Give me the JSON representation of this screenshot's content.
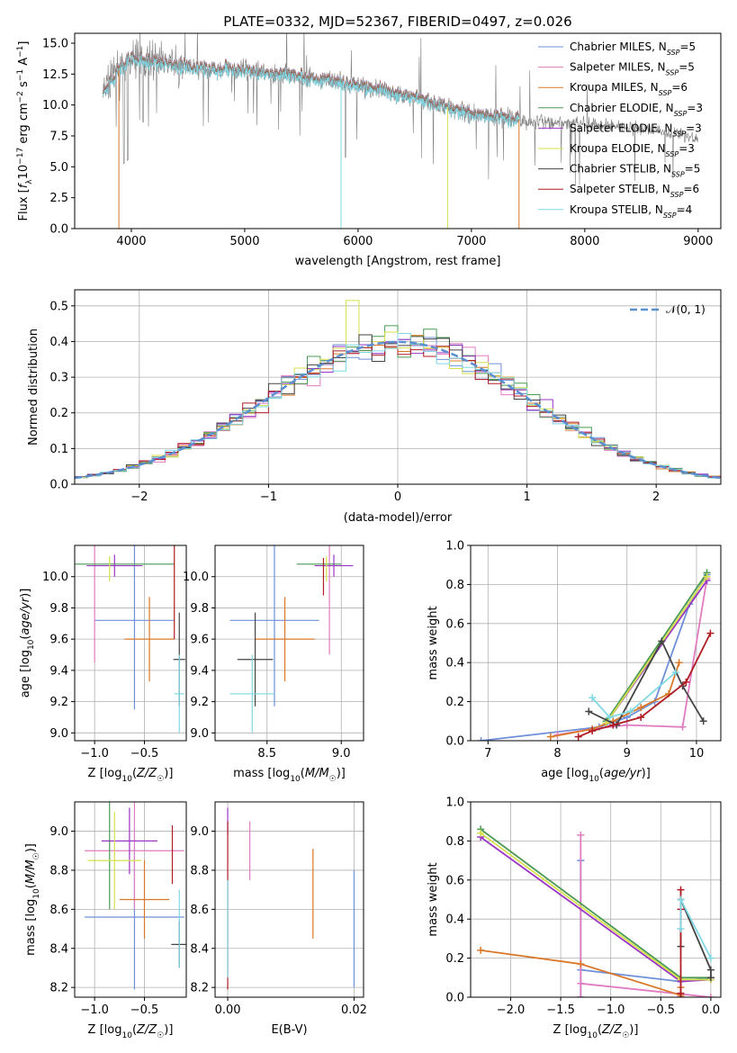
{
  "figure": {
    "title": "PLATE=0332, MJD=52367, FIBERID=0497, z=0.026"
  },
  "models": [
    {
      "lib": "MILES",
      "imf": "Chabrier",
      "label": "Chabrier MILES, N",
      "sub": "SSP",
      "suffix": "=5",
      "color": "#6f8fd8"
    },
    {
      "lib": "MILES",
      "imf": "Salpeter",
      "label": "Salpeter MILES, N",
      "sub": "SSP",
      "suffix": "=5",
      "color": "#e07cc0"
    },
    {
      "lib": "MILES",
      "imf": "Kroupa",
      "label": "Kroupa MILES, N",
      "sub": "SSP",
      "suffix": "=6",
      "color": "#d9782a"
    },
    {
      "lib": "ELODIE",
      "imf": "Chabrier",
      "label": "Chabrier ELODIE, N",
      "sub": "SSP",
      "suffix": "=3",
      "color": "#4a9a54"
    },
    {
      "lib": "ELODIE",
      "imf": "Salpeter",
      "label": "Salpeter ELODIE, N",
      "sub": "SSP",
      "suffix": "=3",
      "color": "#9a35c4"
    },
    {
      "lib": "ELODIE",
      "imf": "Kroupa",
      "label": "Kroupa ELODIE, N",
      "sub": "SSP",
      "suffix": "=3",
      "color": "#d6e04c"
    },
    {
      "lib": "STELIB",
      "imf": "Chabrier",
      "label": "Chabrier STELIB, N",
      "sub": "SSP",
      "suffix": "=5",
      "color": "#444444"
    },
    {
      "lib": "STELIB",
      "imf": "Salpeter",
      "label": "Salpeter STELIB, N",
      "sub": "SSP",
      "suffix": "=6",
      "color": "#b01c24"
    },
    {
      "lib": "STELIB",
      "imf": "Kroupa",
      "label": "Kroupa STELIB, N",
      "sub": "SSP",
      "suffix": "=4",
      "color": "#7fd8e4"
    }
  ],
  "chart_data": [
    {
      "id": "spectrum",
      "type": "line",
      "xlabel": "wavelength [Angstrom, rest frame]",
      "ylabel": "Flux [f_λ10^-17 erg cm^-2 s^-1 A^-1]",
      "xlim": [
        3500,
        9200
      ],
      "ylim": [
        0,
        15.8
      ],
      "xticks": [
        4000,
        5000,
        6000,
        7000,
        8000,
        9000
      ],
      "yticks": [
        0.0,
        2.5,
        5.0,
        7.5,
        10.0,
        12.5,
        15.0
      ],
      "data_color": "#808080",
      "x_range": [
        3750,
        9000
      ],
      "continuum": [
        [
          3750,
          11.0
        ],
        [
          3900,
          13.0
        ],
        [
          4000,
          13.8
        ],
        [
          4300,
          13.3
        ],
        [
          4600,
          12.9
        ],
        [
          5000,
          12.8
        ],
        [
          5500,
          12.3
        ],
        [
          6000,
          11.6
        ],
        [
          6500,
          10.6
        ],
        [
          7000,
          9.3
        ],
        [
          7500,
          8.7
        ],
        [
          8000,
          8.5
        ],
        [
          8500,
          8.1
        ],
        [
          9000,
          7.4
        ]
      ],
      "model_span": [
        3750,
        7420
      ]
    },
    {
      "id": "residuals",
      "type": "histogram",
      "xlabel": "(data-model)/error",
      "ylabel": "Normed distribution",
      "xlim": [
        -2.5,
        2.5
      ],
      "ylim": [
        0,
        0.545
      ],
      "xticks": [
        -2,
        -1,
        0,
        1,
        2
      ],
      "yticks": [
        0.0,
        0.1,
        0.2,
        0.3,
        0.4,
        0.5
      ],
      "bin_width": 0.1,
      "legend": "𝒩(0, 1)",
      "legend_color": "#5b8fd0",
      "highlight": {
        "Kroupa ELODIE": [
          -0.4,
          0.515
        ]
      }
    },
    {
      "id": "age-vs-Z",
      "type": "errorbar",
      "xlabel": "Z [log10(Z/Z☉)]",
      "ylabel": "age  [log10(age/yr)]",
      "xlim": [
        -1.2,
        -0.08
      ],
      "ylim": [
        8.95,
        10.2
      ],
      "xticks": [
        -1.0,
        -0.5
      ],
      "yticks": [
        9.0,
        9.2,
        9.4,
        9.6,
        9.8,
        10.0
      ],
      "points": [
        {
          "x": -0.6,
          "xerr": 0.4,
          "y": 9.72,
          "yerr": 0.57
        },
        {
          "x": -1.0,
          "xerr": 0.0,
          "y": 10.0,
          "yerr": 0.55
        },
        {
          "x": -0.45,
          "xerr": 0.25,
          "y": 9.6,
          "yerr": 0.27
        },
        {
          "x": -0.7,
          "xerr": 0.5,
          "y": 10.08,
          "yerr": 0.0
        },
        {
          "x": -0.8,
          "xerr": 0.28,
          "y": 10.07,
          "yerr": 0.07
        },
        {
          "x": -0.85,
          "xerr": 0.0,
          "y": 10.05,
          "yerr": 0.08
        },
        {
          "x": -0.15,
          "xerr": 0.06,
          "y": 9.47,
          "yerr": 0.3
        },
        {
          "x": -0.2,
          "xerr": 0.0,
          "y": 9.95,
          "yerr": 0.35
        },
        {
          "x": -0.15,
          "xerr": 0.05,
          "y": 9.25,
          "yerr": 0.25
        }
      ]
    },
    {
      "id": "age-vs-mass",
      "type": "errorbar",
      "xlabel": "mass [log10(M/M☉)]",
      "ylabel": "",
      "xlim": [
        8.15,
        9.15
      ],
      "ylim": [
        8.95,
        10.2
      ],
      "xticks": [
        8.5,
        9.0
      ],
      "yticks": [
        9.0,
        9.2,
        9.4,
        9.6,
        9.8,
        10.0
      ],
      "points": [
        {
          "x": 8.55,
          "xerr": 0.3,
          "y": 9.72,
          "yerr": 0.55
        },
        {
          "x": 8.92,
          "xerr": 0.0,
          "y": 10.0,
          "yerr": 0.5
        },
        {
          "x": 8.62,
          "xerr": 0.2,
          "y": 9.6,
          "yerr": 0.27
        },
        {
          "x": 8.85,
          "xerr": 0.15,
          "y": 10.08,
          "yerr": 0.0
        },
        {
          "x": 8.95,
          "xerr": 0.13,
          "y": 10.07,
          "yerr": 0.07
        },
        {
          "x": 8.9,
          "xerr": 0.0,
          "y": 10.05,
          "yerr": 0.08
        },
        {
          "x": 8.42,
          "xerr": 0.12,
          "y": 9.47,
          "yerr": 0.3
        },
        {
          "x": 8.88,
          "xerr": 0.0,
          "y": 10.0,
          "yerr": 0.12
        },
        {
          "x": 8.4,
          "xerr": 0.15,
          "y": 9.25,
          "yerr": 0.25
        }
      ]
    },
    {
      "id": "mass-weight-vs-age",
      "type": "line",
      "xlabel": "age  [log10(age/yr)]",
      "ylabel": "mass weight",
      "xlim": [
        6.75,
        10.35
      ],
      "ylim": [
        0,
        1.0
      ],
      "xticks": [
        7,
        8,
        9,
        10
      ],
      "yticks": [
        0.0,
        0.2,
        0.4,
        0.6,
        0.8,
        1.0
      ],
      "series": [
        {
          "x": [
            6.9,
            8.6,
            9.0,
            9.4,
            9.9,
            10.15
          ],
          "y": [
            0.0,
            0.07,
            0.12,
            0.2,
            0.7,
            0.85
          ]
        },
        {
          "x": [
            8.0,
            8.5,
            9.0,
            9.8,
            10.15
          ],
          "y": [
            0.03,
            0.06,
            0.08,
            0.07,
            0.83
          ]
        },
        {
          "x": [
            7.9,
            8.5,
            8.8,
            9.2,
            9.6,
            9.75
          ],
          "y": [
            0.02,
            0.06,
            0.1,
            0.17,
            0.24,
            0.4
          ]
        },
        {
          "x": [
            8.7,
            10.15
          ],
          "y": [
            0.1,
            0.86
          ]
        },
        {
          "x": [
            8.7,
            10.15
          ],
          "y": [
            0.09,
            0.82
          ]
        },
        {
          "x": [
            8.7,
            10.15
          ],
          "y": [
            0.09,
            0.84
          ]
        },
        {
          "x": [
            8.45,
            8.85,
            9.5,
            9.8,
            10.1
          ],
          "y": [
            0.15,
            0.08,
            0.51,
            0.28,
            0.1
          ]
        },
        {
          "x": [
            8.3,
            8.5,
            8.8,
            9.2,
            9.85,
            10.2
          ],
          "y": [
            0.02,
            0.05,
            0.08,
            0.12,
            0.3,
            0.55
          ]
        },
        {
          "x": [
            8.5,
            8.75,
            9.05,
            9.7
          ],
          "y": [
            0.22,
            0.12,
            0.15,
            0.35
          ]
        }
      ]
    },
    {
      "id": "mass-vs-Z",
      "type": "errorbar",
      "xlabel": "Z [log10(Z/Z☉)]",
      "ylabel": "mass [log10(M/M☉)]",
      "xlim": [
        -1.2,
        -0.08
      ],
      "ylim": [
        8.15,
        9.15
      ],
      "xticks": [
        -1.0,
        -0.5
      ],
      "yticks": [
        8.2,
        8.4,
        8.6,
        8.8,
        9.0
      ],
      "points": [
        {
          "x": -0.6,
          "xerr": 0.5,
          "y": 8.56,
          "yerr": 0.37
        },
        {
          "x": -0.6,
          "xerr": 0.5,
          "y": 8.9,
          "yerr": 0.3
        },
        {
          "x": -0.5,
          "xerr": 0.25,
          "y": 8.65,
          "yerr": 0.2
        },
        {
          "x": -0.85,
          "xerr": 0.0,
          "y": 8.9,
          "yerr": 0.3
        },
        {
          "x": -0.65,
          "xerr": 0.28,
          "y": 8.95,
          "yerr": 0.17
        },
        {
          "x": -0.8,
          "xerr": 0.27,
          "y": 8.85,
          "yerr": 0.25
        },
        {
          "x": -0.15,
          "xerr": 0.08,
          "y": 8.42,
          "yerr": 0.12
        },
        {
          "x": -0.22,
          "xerr": 0.0,
          "y": 8.88,
          "yerr": 0.15
        },
        {
          "x": -0.15,
          "xerr": 0.0,
          "y": 8.5,
          "yerr": 0.2
        }
      ]
    },
    {
      "id": "mass-vs-ebv",
      "type": "errorbar",
      "xlabel": "E(B-V)",
      "ylabel": "",
      "xlim": [
        -0.002,
        0.0215
      ],
      "ylim": [
        8.15,
        9.15
      ],
      "xticks": [
        0.0,
        0.02
      ],
      "yticks": [
        8.2,
        8.4,
        8.6,
        8.8,
        9.0
      ],
      "points": [
        {
          "x": 0.02,
          "xerr": 0.0,
          "y": 8.5,
          "yerr": 0.3
        },
        {
          "x": 0.0035,
          "xerr": 0.0,
          "y": 8.9,
          "yerr": 0.15
        },
        {
          "x": 0.0135,
          "xerr": 0.0,
          "y": 8.68,
          "yerr": 0.23
        },
        {
          "x": 0.0,
          "xerr": 0.0,
          "y": 8.62,
          "yerr": 0.0
        },
        {
          "x": 0.0,
          "xerr": 0.0,
          "y": 9.05,
          "yerr": 0.07
        },
        {
          "x": 0.0,
          "xerr": 0.0,
          "y": 8.62,
          "yerr": 0.0
        },
        {
          "x": 0.0,
          "xerr": 0.0,
          "y": 8.62,
          "yerr": 0.0
        },
        {
          "x": 0.0,
          "xerr": 0.0,
          "y": 8.62,
          "yerr": 0.43
        },
        {
          "x": 0.0,
          "xerr": 0.0,
          "y": 8.5,
          "yerr": 0.25
        }
      ]
    },
    {
      "id": "mass-weight-vs-Z",
      "type": "line",
      "xlabel": "Z [log10(Z/Z☉)]",
      "ylabel": "mass weight",
      "xlim": [
        -2.4,
        0.1
      ],
      "ylim": [
        0,
        1.0
      ],
      "xticks": [
        -2.0,
        -1.5,
        -1.0,
        -0.5,
        0.0
      ],
      "yticks": [
        0.0,
        0.2,
        0.4,
        0.6,
        0.8,
        1.0
      ],
      "series": [
        {
          "x": [
            -1.3,
            -1.3,
            -1.3,
            -0.3,
            0.0
          ],
          "y": [
            0.7,
            0.0,
            0.14,
            0.08,
            0.1
          ]
        },
        {
          "x": [
            -1.3,
            -1.3,
            -1.3,
            0.0
          ],
          "y": [
            0.83,
            0.0,
            0.07,
            0.0
          ]
        },
        {
          "x": [
            -2.3,
            -1.3,
            -0.3,
            -0.3
          ],
          "y": [
            0.24,
            0.17,
            0.01,
            0.05
          ]
        },
        {
          "x": [
            -2.3,
            -0.3,
            0.0
          ],
          "y": [
            0.86,
            0.1,
            0.1
          ]
        },
        {
          "x": [
            -2.3,
            -0.3,
            0.0
          ],
          "y": [
            0.82,
            0.08,
            0.09
          ]
        },
        {
          "x": [
            -2.3,
            -0.3,
            0.0
          ],
          "y": [
            0.84,
            0.09,
            0.09
          ]
        },
        {
          "x": [
            -0.3,
            -0.3,
            0.0,
            0.0
          ],
          "y": [
            0.26,
            0.5,
            0.14,
            0.1
          ]
        },
        {
          "x": [
            -0.3,
            -0.3,
            -0.3,
            -0.3
          ],
          "y": [
            0.55,
            0.02,
            0.0,
            0.45
          ]
        },
        {
          "x": [
            -0.3,
            -0.3,
            0.0
          ],
          "y": [
            0.35,
            0.5,
            0.2
          ]
        }
      ]
    }
  ]
}
